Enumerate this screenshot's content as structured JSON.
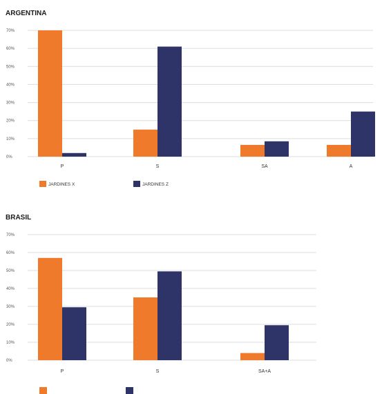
{
  "colors": {
    "series_x": "#F07A2B",
    "series_z": "#2E3468",
    "grid": "#dcdcdc"
  },
  "chart_data": [
    {
      "type": "bar",
      "title": "ARGENTINA",
      "categories": [
        "P",
        "S",
        "SA",
        "A"
      ],
      "series": [
        {
          "name": "JARDINES X",
          "values": [
            70,
            15,
            6.5,
            6.5
          ]
        },
        {
          "name": "JARDINES Z",
          "values": [
            2,
            61,
            8.5,
            25
          ]
        }
      ],
      "yticks": [
        "0%",
        "10%",
        "20%",
        "30%",
        "40%",
        "50%",
        "60%",
        "70%"
      ],
      "ylim": [
        0,
        70
      ],
      "grid": true,
      "legend": "bottom-left"
    },
    {
      "type": "bar",
      "title": "BRASIL",
      "categories": [
        "P",
        "S",
        "SA+A"
      ],
      "series": [
        {
          "values": [
            57,
            35,
            4
          ]
        },
        {
          "values": [
            29.5,
            49.5,
            19.5
          ]
        }
      ],
      "yticks": [
        "0%",
        "10%",
        "20%",
        "30%",
        "40%",
        "50%",
        "60%",
        "70%"
      ],
      "ylim": [
        0,
        70
      ],
      "grid": true,
      "legend": "bottom-left"
    }
  ]
}
